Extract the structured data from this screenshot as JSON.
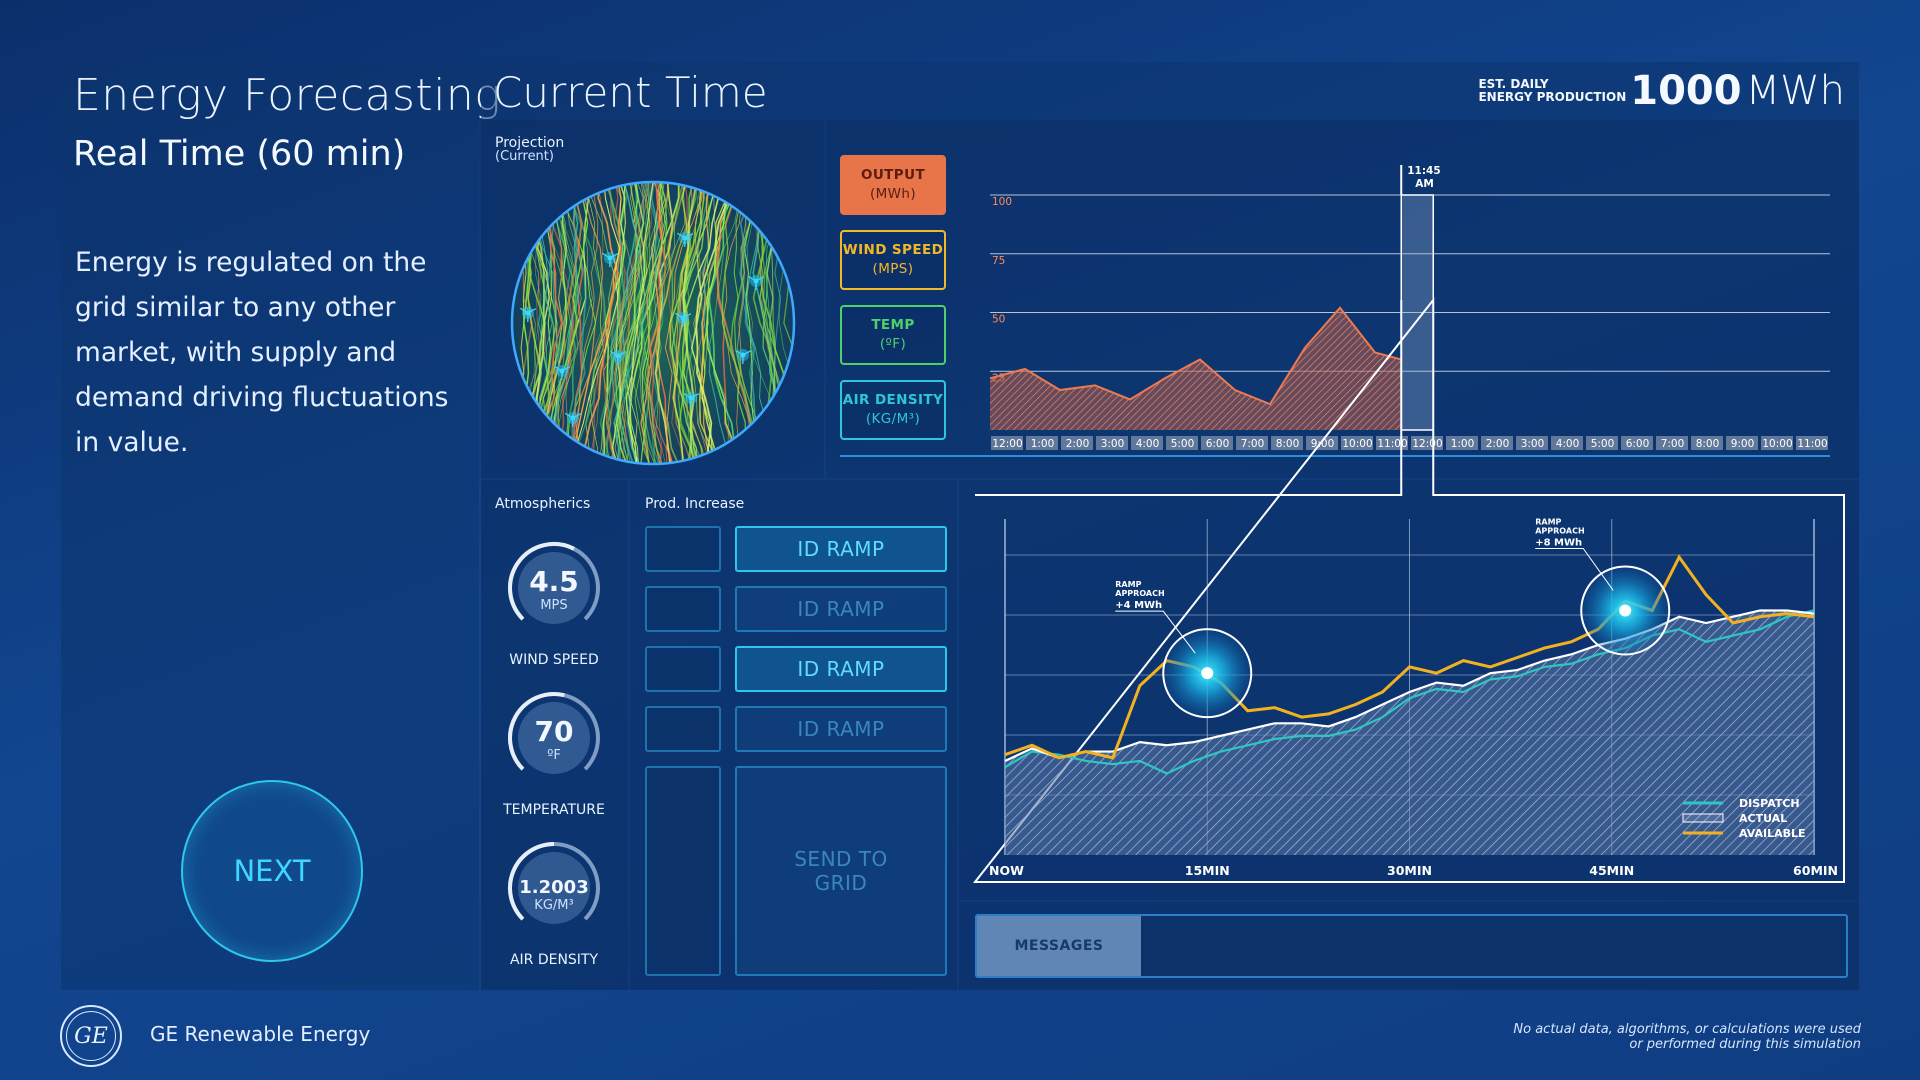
{
  "left": {
    "title": "Energy Forecasting",
    "subtitle": "Real Time (60 min)",
    "description": "Energy is regulated on the grid similar to any other market, with supply and demand driving fluctuations in value.",
    "next_label": "NEXT"
  },
  "header": {
    "title": "Current Time",
    "est_line1": "EST. DAILY",
    "est_line2": "ENERGY PRODUCTION",
    "est_value": "1000",
    "est_unit": "MWh"
  },
  "projection": {
    "label_line1": "Projection",
    "label_line2": "(Current)"
  },
  "legend_buttons": [
    {
      "line1": "OUTPUT",
      "line2": "(MWh)",
      "color": "#e8744a",
      "active": true
    },
    {
      "line1": "WIND SPEED",
      "line2": "(MPS)",
      "color": "#f2b828",
      "active": false
    },
    {
      "line1": "TEMP",
      "line2": "(ºF)",
      "color": "#4fd06a",
      "active": false
    },
    {
      "line1": "AIR DENSITY",
      "line2": "(KG/M³)",
      "color": "#2ec6d8",
      "active": false
    }
  ],
  "atmospherics": {
    "label": "Atmospherics",
    "gauges": [
      {
        "value": "4.5",
        "unit": "MPS",
        "label": "WIND SPEED",
        "level": 0.6
      },
      {
        "value": "70",
        "unit": "ºF",
        "label": "TEMPERATURE",
        "level": 0.55
      },
      {
        "value": "1.2003",
        "unit": "KG/M³",
        "label": "AIR DENSITY",
        "level": 0.5
      }
    ]
  },
  "prod_increase": {
    "label": "Prod. Increase",
    "ramps": [
      {
        "label": "ID RAMP",
        "active": true
      },
      {
        "label": "ID RAMP",
        "active": false
      },
      {
        "label": "ID RAMP",
        "active": true
      },
      {
        "label": "ID RAMP",
        "active": false
      }
    ],
    "send_label_line1": "SEND TO",
    "send_label_line2": "GRID"
  },
  "messages_label": "MESSAGES",
  "footer": {
    "brand": "GE Renewable Energy",
    "logo_text": "GE",
    "disclaimer_line1": "No actual data, algorithms, or calculations were used",
    "disclaimer_line2": "or performed during this simulation"
  },
  "chart_data": [
    {
      "type": "area",
      "series_name": "OUTPUT (MWh)",
      "ylim": [
        0,
        100
      ],
      "y_ticks": [
        25,
        50,
        75,
        100
      ],
      "grid": true,
      "x_labels": [
        "12:00",
        "1:00",
        "2:00",
        "3:00",
        "4:00",
        "5:00",
        "6:00",
        "7:00",
        "8:00",
        "9:00",
        "10:00",
        "11:00",
        "12:00",
        "1:00",
        "2:00",
        "3:00",
        "4:00",
        "5:00",
        "6:00",
        "7:00",
        "8:00",
        "9:00",
        "10:00",
        "11:00"
      ],
      "x": [
        0,
        1,
        2,
        3,
        4,
        5,
        6,
        7,
        8,
        9,
        10,
        11,
        11.75
      ],
      "values": [
        22,
        26,
        17,
        19,
        13,
        22,
        30,
        17,
        11,
        35,
        52,
        33,
        30
      ],
      "current_marker": {
        "label_line1": "11:45",
        "label_line2": "AM",
        "x": 11.75,
        "value": 55
      }
    },
    {
      "type": "line",
      "x_labels": [
        "NOW",
        "15MIN",
        "30MIN",
        "45MIN",
        "60MIN"
      ],
      "x": [
        0,
        2,
        4,
        6,
        8,
        10,
        12,
        14,
        16,
        18,
        20,
        22,
        24,
        26,
        28,
        30,
        32,
        34,
        36,
        38,
        40,
        42,
        44,
        46,
        48,
        50,
        52,
        54,
        56,
        58,
        60
      ],
      "ylim": [
        0,
        100
      ],
      "grid": true,
      "legend_position": "bottom-right",
      "series": [
        {
          "name": "DISPATCH",
          "color": "#2ec6c0",
          "values": [
            28,
            33,
            32,
            30,
            29,
            30,
            26,
            30,
            33,
            35,
            37,
            38,
            38,
            40,
            44,
            50,
            53,
            52,
            56,
            57,
            60,
            61,
            64,
            66,
            70,
            72,
            68,
            70,
            72,
            76,
            78
          ]
        },
        {
          "name": "ACTUAL",
          "color": "#ffffff",
          "values": [
            30,
            34,
            31,
            33,
            33,
            36,
            35,
            36,
            38,
            40,
            42,
            42,
            41,
            44,
            48,
            52,
            55,
            54,
            58,
            59,
            62,
            64,
            67,
            69,
            72,
            76,
            74,
            76,
            78,
            78,
            77
          ]
        },
        {
          "name": "AVAILABLE",
          "color": "#f2b21f",
          "values": [
            32,
            35,
            31,
            33,
            31,
            54,
            62,
            60,
            55,
            46,
            47,
            44,
            45,
            48,
            52,
            60,
            58,
            62,
            60,
            63,
            66,
            68,
            72,
            81,
            78,
            95,
            83,
            74,
            76,
            77,
            76
          ]
        }
      ],
      "annotations": [
        {
          "label_line1": "RAMP",
          "label_line2": "APPROACH",
          "label_line3": "+4 MWh",
          "x": 15,
          "value": 58
        },
        {
          "label_line1": "RAMP",
          "label_line2": "APPROACH",
          "label_line3": "+8 MWh",
          "x": 46,
          "value": 78
        }
      ]
    }
  ]
}
